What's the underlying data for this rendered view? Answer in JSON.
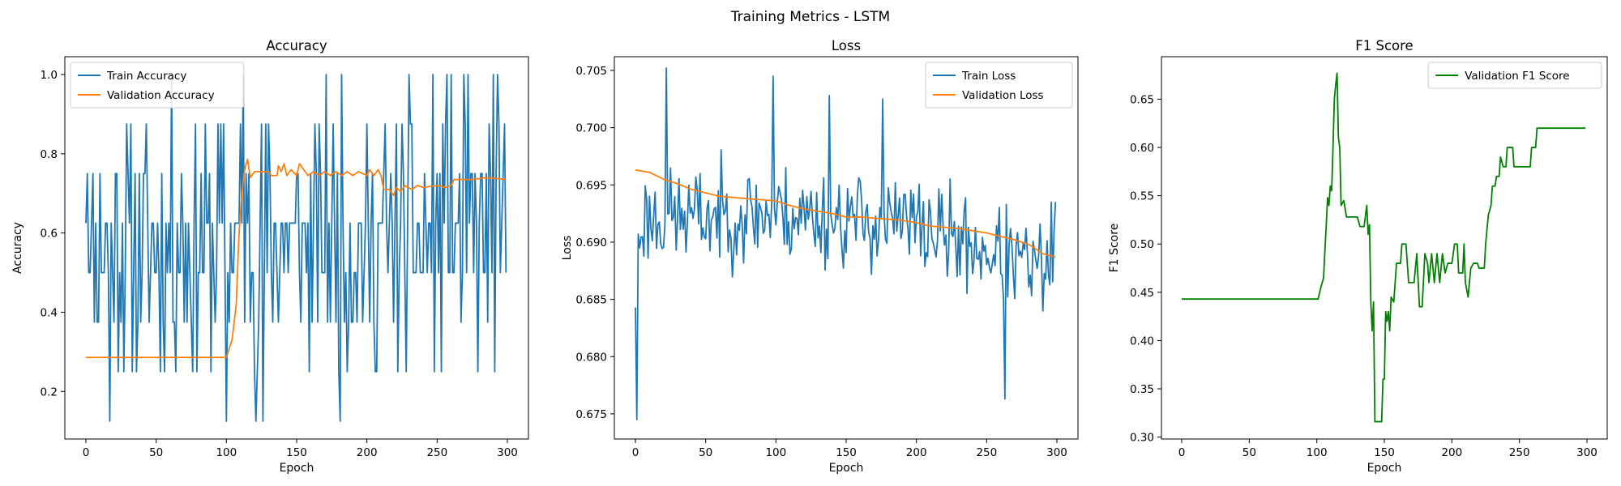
{
  "figure": {
    "suptitle": "Training Metrics - LSTM"
  },
  "chart_data": [
    {
      "type": "line",
      "title": "Accuracy",
      "xlabel": "Epoch",
      "ylabel": "Accuracy",
      "xlim": [
        -15,
        315
      ],
      "ylim": [
        0.08,
        1.045
      ],
      "xticks": [
        0,
        50,
        100,
        150,
        200,
        250,
        300
      ],
      "yticks": [
        0.2,
        0.4,
        0.6,
        0.8,
        1.0
      ],
      "ytick_format": 1,
      "legend": "upper-left",
      "series": [
        {
          "name": "Train Accuracy",
          "color": "#1f77b4",
          "mode": "noise",
          "seed": 11,
          "x_end": 299,
          "levels": [
            0.125,
            0.25,
            0.375,
            0.5,
            0.625,
            0.75,
            0.875,
            1.0
          ],
          "weights": [
            1,
            4,
            9,
            16,
            16,
            10,
            6,
            1
          ],
          "fixed": [
            [
              0,
              0.625
            ],
            [
              1,
              0.75
            ],
            [
              2,
              0.5
            ],
            [
              3,
              0.5
            ],
            [
              17,
              0.125
            ],
            [
              100,
              0.125
            ],
            [
              112,
              1.0
            ],
            [
              126,
              0.125
            ],
            [
              257,
              1.0
            ],
            [
              272,
              1.0
            ],
            [
              290,
              1.0
            ],
            [
              297,
              0.75
            ],
            [
              299,
              0.5
            ]
          ]
        },
        {
          "name": "Validation Accuracy",
          "color": "#ff7f0e",
          "mode": "points",
          "points": [
            [
              0,
              0.286
            ],
            [
              100,
              0.286
            ],
            [
              104,
              0.33
            ],
            [
              107,
              0.42
            ],
            [
              109,
              0.6
            ],
            [
              111,
              0.7
            ],
            [
              113,
              0.76
            ],
            [
              115,
              0.786
            ],
            [
              117,
              0.74
            ],
            [
              120,
              0.755
            ],
            [
              130,
              0.755
            ],
            [
              132,
              0.745
            ],
            [
              136,
              0.745
            ],
            [
              137,
              0.77
            ],
            [
              139,
              0.755
            ],
            [
              141,
              0.775
            ],
            [
              143,
              0.745
            ],
            [
              146,
              0.76
            ],
            [
              150,
              0.745
            ],
            [
              152,
              0.775
            ],
            [
              154,
              0.765
            ],
            [
              158,
              0.745
            ],
            [
              162,
              0.755
            ],
            [
              166,
              0.745
            ],
            [
              170,
              0.755
            ],
            [
              174,
              0.745
            ],
            [
              178,
              0.755
            ],
            [
              182,
              0.745
            ],
            [
              186,
              0.755
            ],
            [
              190,
              0.745
            ],
            [
              194,
              0.755
            ],
            [
              200,
              0.745
            ],
            [
              202,
              0.76
            ],
            [
              205,
              0.745
            ],
            [
              208,
              0.76
            ],
            [
              210,
              0.745
            ],
            [
              212,
              0.71
            ],
            [
              216,
              0.71
            ],
            [
              219,
              0.695
            ],
            [
              221,
              0.715
            ],
            [
              224,
              0.705
            ],
            [
              227,
              0.72
            ],
            [
              232,
              0.71
            ],
            [
              236,
              0.72
            ],
            [
              240,
              0.715
            ],
            [
              250,
              0.72
            ],
            [
              256,
              0.715
            ],
            [
              260,
              0.72
            ],
            [
              262,
              0.735
            ],
            [
              275,
              0.735
            ],
            [
              285,
              0.74
            ],
            [
              299,
              0.735
            ]
          ]
        }
      ]
    },
    {
      "type": "line",
      "title": "Loss",
      "xlabel": "Epoch",
      "ylabel": "Loss",
      "xlim": [
        -15,
        315
      ],
      "ylim": [
        0.6728,
        0.7062
      ],
      "xticks": [
        0,
        50,
        100,
        150,
        200,
        250,
        300
      ],
      "yticks": [
        0.675,
        0.68,
        0.685,
        0.69,
        0.695,
        0.7,
        0.705
      ],
      "ytick_format": 3,
      "legend": "upper-right",
      "series": [
        {
          "name": "Train Loss",
          "color": "#1f77b4",
          "mode": "noise",
          "seed": 23,
          "x_end": 299,
          "mean": [
            [
              0,
              0.692
            ],
            [
              100,
              0.6925
            ],
            [
              200,
              0.6915
            ],
            [
              299,
              0.687
            ]
          ],
          "spread": 0.0062,
          "fixed": [
            [
              0,
              0.6843
            ],
            [
              1,
              0.6745
            ],
            [
              2,
              0.6907
            ],
            [
              3,
              0.6895
            ],
            [
              22,
              0.7052
            ],
            [
              98,
              0.7045
            ],
            [
              138,
              0.7028
            ],
            [
              176,
              0.7025
            ],
            [
              263,
              0.6763
            ],
            [
              296,
              0.6935
            ],
            [
              299,
              0.6935
            ]
          ]
        },
        {
          "name": "Validation Loss",
          "color": "#ff7f0e",
          "mode": "points",
          "points": [
            [
              0,
              0.6963
            ],
            [
              10,
              0.6961
            ],
            [
              20,
              0.6955
            ],
            [
              30,
              0.6951
            ],
            [
              40,
              0.6946
            ],
            [
              50,
              0.6943
            ],
            [
              60,
              0.694
            ],
            [
              70,
              0.6939
            ],
            [
              80,
              0.6938
            ],
            [
              90,
              0.6937
            ],
            [
              100,
              0.6936
            ],
            [
              110,
              0.6932
            ],
            [
              120,
              0.6929
            ],
            [
              130,
              0.6927
            ],
            [
              140,
              0.6925
            ],
            [
              150,
              0.6922
            ],
            [
              160,
              0.6922
            ],
            [
              170,
              0.6921
            ],
            [
              180,
              0.692
            ],
            [
              190,
              0.6919
            ],
            [
              200,
              0.6917
            ],
            [
              210,
              0.6914
            ],
            [
              220,
              0.6913
            ],
            [
              230,
              0.6912
            ],
            [
              240,
              0.691
            ],
            [
              250,
              0.6908
            ],
            [
              260,
              0.6905
            ],
            [
              270,
              0.6902
            ],
            [
              280,
              0.6898
            ],
            [
              290,
              0.689
            ],
            [
              299,
              0.6887
            ]
          ]
        }
      ]
    },
    {
      "type": "line",
      "title": "F1 Score",
      "xlabel": "Epoch",
      "ylabel": "F1 Score",
      "xlim": [
        -15,
        315
      ],
      "ylim": [
        0.298,
        0.694
      ],
      "xticks": [
        0,
        50,
        100,
        150,
        200,
        250,
        300
      ],
      "yticks": [
        0.3,
        0.35,
        0.4,
        0.45,
        0.5,
        0.55,
        0.6,
        0.65
      ],
      "ytick_format": 2,
      "legend": "upper-right",
      "series": [
        {
          "name": "Validation F1 Score",
          "color": "#008000",
          "mode": "points",
          "points": [
            [
              0,
              0.443
            ],
            [
              101,
              0.443
            ],
            [
              103,
              0.455
            ],
            [
              105,
              0.465
            ],
            [
              107,
              0.52
            ],
            [
              108,
              0.548
            ],
            [
              109,
              0.54
            ],
            [
              110,
              0.56
            ],
            [
              111,
              0.555
            ],
            [
              112,
              0.6
            ],
            [
              113,
              0.65
            ],
            [
              114,
              0.665
            ],
            [
              115,
              0.677
            ],
            [
              116,
              0.61
            ],
            [
              117,
              0.6
            ],
            [
              118,
              0.54
            ],
            [
              120,
              0.545
            ],
            [
              122,
              0.528
            ],
            [
              130,
              0.528
            ],
            [
              132,
              0.518
            ],
            [
              135,
              0.518
            ],
            [
              137,
              0.54
            ],
            [
              138,
              0.51
            ],
            [
              139,
              0.52
            ],
            [
              140,
              0.44
            ],
            [
              141,
              0.41
            ],
            [
              142,
              0.44
            ],
            [
              143,
              0.316
            ],
            [
              148,
              0.316
            ],
            [
              149,
              0.36
            ],
            [
              150,
              0.36
            ],
            [
              151,
              0.43
            ],
            [
              152,
              0.42
            ],
            [
              153,
              0.43
            ],
            [
              154,
              0.41
            ],
            [
              155,
              0.445
            ],
            [
              157,
              0.44
            ],
            [
              159,
              0.48
            ],
            [
              162,
              0.48
            ],
            [
              163,
              0.5
            ],
            [
              166,
              0.5
            ],
            [
              168,
              0.46
            ],
            [
              172,
              0.46
            ],
            [
              174,
              0.49
            ],
            [
              176,
              0.435
            ],
            [
              178,
              0.435
            ],
            [
              180,
              0.49
            ],
            [
              182,
              0.48
            ],
            [
              183,
              0.46
            ],
            [
              185,
              0.49
            ],
            [
              187,
              0.46
            ],
            [
              189,
              0.49
            ],
            [
              191,
              0.46
            ],
            [
              193,
              0.49
            ],
            [
              195,
              0.47
            ],
            [
              197,
              0.48
            ],
            [
              200,
              0.48
            ],
            [
              202,
              0.5
            ],
            [
              204,
              0.5
            ],
            [
              205,
              0.47
            ],
            [
              208,
              0.47
            ],
            [
              209,
              0.5
            ],
            [
              210,
              0.46
            ],
            [
              212,
              0.445
            ],
            [
              214,
              0.475
            ],
            [
              216,
              0.48
            ],
            [
              219,
              0.48
            ],
            [
              220,
              0.475
            ],
            [
              224,
              0.475
            ],
            [
              225,
              0.5
            ],
            [
              227,
              0.53
            ],
            [
              229,
              0.54
            ],
            [
              230,
              0.56
            ],
            [
              232,
              0.56
            ],
            [
              233,
              0.57
            ],
            [
              235,
              0.57
            ],
            [
              236,
              0.59
            ],
            [
              238,
              0.58
            ],
            [
              240,
              0.58
            ],
            [
              241,
              0.6
            ],
            [
              245,
              0.6
            ],
            [
              246,
              0.58
            ],
            [
              258,
              0.58
            ],
            [
              259,
              0.6
            ],
            [
              262,
              0.6
            ],
            [
              263,
              0.62
            ],
            [
              299,
              0.62
            ]
          ]
        }
      ]
    }
  ]
}
